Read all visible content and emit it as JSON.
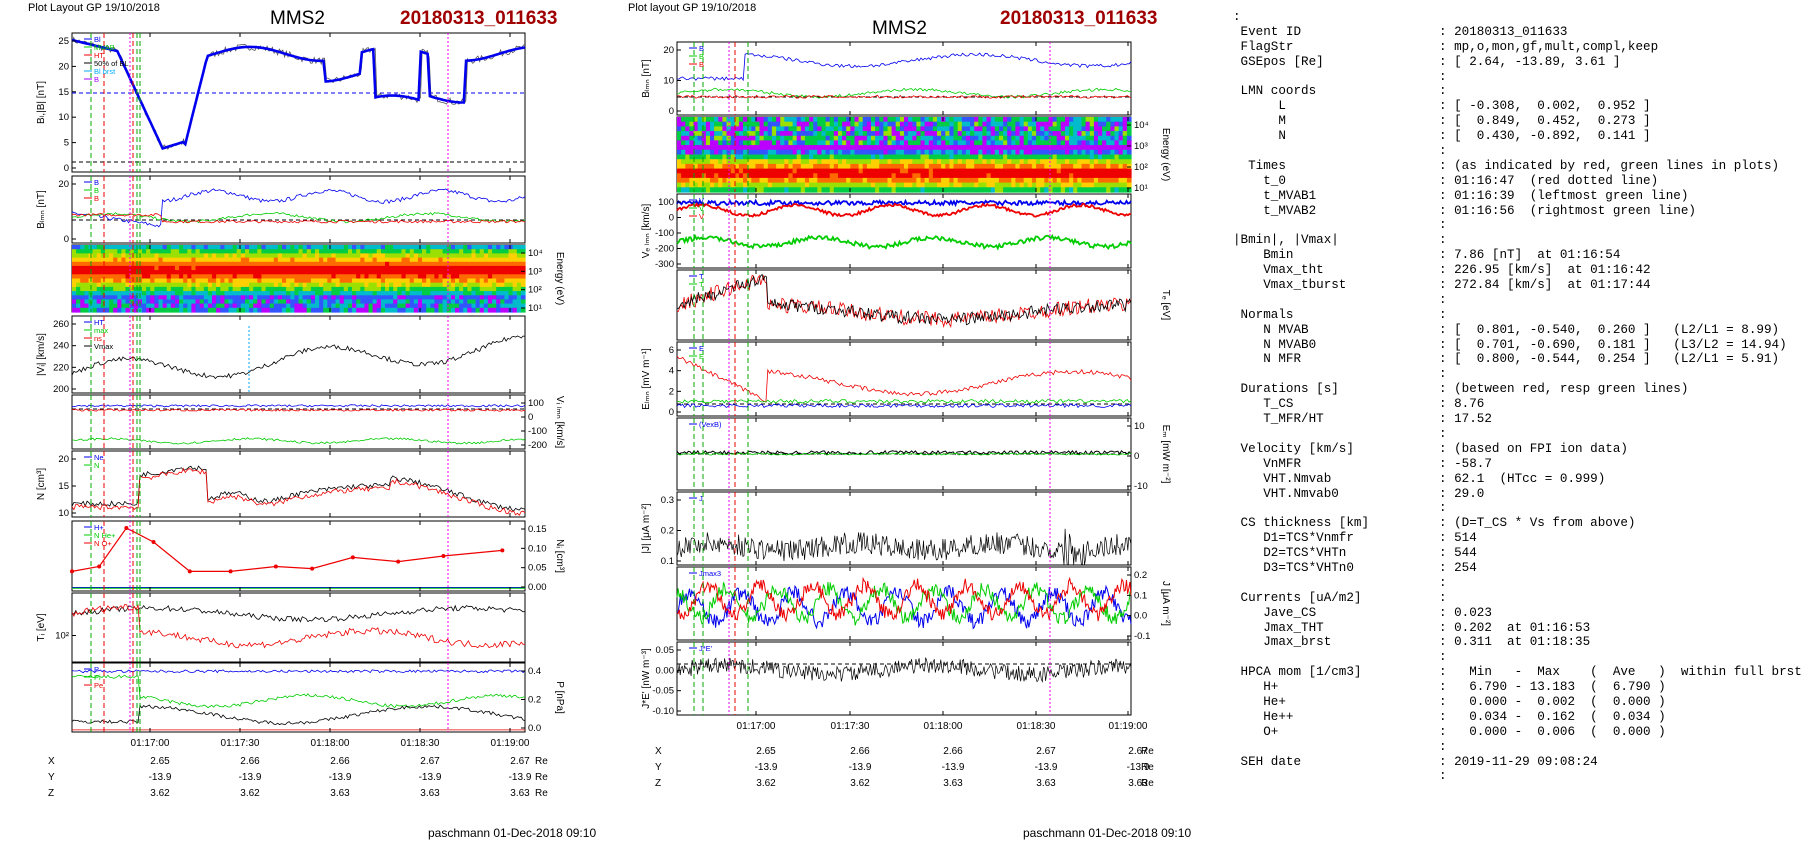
{
  "colors": {
    "title_id": "#a00000",
    "l": "#0000ee",
    "m": "#00cc00",
    "n": "#ee0000",
    "magenta": "#ee00ee",
    "green_line": "#00aa00",
    "red_line": "#ee0000"
  },
  "left_plot": {
    "header": "Plot Layout GP 19/10/2018",
    "title": "MMS2",
    "event_id": "20180313_011633",
    "footer": "paschmann 01-Dec-2018 09:10",
    "panels": [
      {
        "ylabel": "Bₗ,|B| [nT]",
        "ticks": [
          "25",
          "20",
          "15",
          "10",
          "5",
          "0"
        ],
        "legend": [
          "Bl",
          "MVAB",
          "HT",
          "50% of BL",
          "Bl brst",
          "B"
        ]
      },
      {
        "ylabel": "Bₗₘₙ [nT]",
        "ticks": [
          "20",
          "0"
        ],
        "legend": [
          "B",
          "B",
          "B"
        ]
      },
      {
        "ylabel": "Energy (eV)",
        "ticks": [
          "10⁴",
          "10³",
          "10²",
          "10¹"
        ]
      },
      {
        "ylabel": "|Vᵢ| [km/s]",
        "ticks": [
          "260",
          "240",
          "220",
          "200"
        ],
        "legend": [
          "HT",
          "max",
          "ns",
          "Vmax"
        ]
      },
      {
        "ylabel": "Vᵢ ₗₘₙ [km/s]",
        "ticks": [
          "100",
          "0",
          "-100",
          "-200"
        ]
      },
      {
        "ylabel": "N [cm³]",
        "ticks": [
          "20",
          "15",
          "10"
        ],
        "legend": [
          "Ne",
          "N"
        ]
      },
      {
        "ylabel": "Nᵢ [cm³]",
        "ticks": [
          "0.15",
          "0.10",
          "0.05",
          "0.00"
        ],
        "legend": [
          "H+",
          "N He+",
          "N O+"
        ]
      },
      {
        "ylabel": "Tᵢ [eV]",
        "ticks": [
          "10²"
        ]
      },
      {
        "ylabel": "P [nPa]",
        "ticks": [
          "0.4",
          "0.2",
          "0.0"
        ],
        "legend": [
          "P",
          "Pi",
          "Pe"
        ]
      }
    ],
    "time_ticks": [
      "01:17:00",
      "01:17:30",
      "01:18:00",
      "01:18:30",
      "01:19:00"
    ],
    "coords": [
      {
        "label": "X",
        "values": [
          "2.65",
          "2.66",
          "2.66",
          "2.67",
          "2.67"
        ],
        "unit": "Re"
      },
      {
        "label": "Y",
        "values": [
          "-13.9",
          "-13.9",
          "-13.9",
          "-13.9",
          "-13.9"
        ],
        "unit": "Re"
      },
      {
        "label": "Z",
        "values": [
          "3.62",
          "3.62",
          "3.63",
          "3.63",
          "3.63"
        ],
        "unit": "Re"
      }
    ]
  },
  "right_plot": {
    "header": "Plot layout GP 19/10/2018",
    "title": "MMS2",
    "event_id": "20180313_011633",
    "footer": "paschmann 01-Dec-2018 09:10",
    "panels": [
      {
        "ylabel": "Bₗₘₙ [nT]",
        "ticks": [
          "20",
          "10",
          "0"
        ],
        "legend": [
          "B",
          "B",
          "B"
        ]
      },
      {
        "ylabel": "Energy (eV)",
        "ticks": [
          "10⁴",
          "10³",
          "10²",
          "10¹"
        ]
      },
      {
        "ylabel": "Vₑ ₗₘₙ [km/s]",
        "ticks": [
          "100",
          "0",
          "-100",
          "-200",
          "-300"
        ],
        "legend": [
          "V",
          "V",
          "V"
        ]
      },
      {
        "ylabel": "Tₑ [eV]",
        "ticks": [],
        "legend": [
          "T",
          "T"
        ]
      },
      {
        "ylabel": "Eₗₘₙ [mV m⁻¹]",
        "ticks": [
          "6",
          "4",
          "2",
          "0"
        ],
        "legend": [
          "E",
          "E"
        ]
      },
      {
        "ylabel": "Eₘ [mW m⁻²]",
        "ticks": [
          "10",
          "0",
          "-10"
        ],
        "legend": [
          "(VexB)"
        ]
      },
      {
        "ylabel": "|J| [μA m⁻²]",
        "ticks": [
          "0.3",
          "0.2",
          "0.1"
        ],
        "legend": [
          "J"
        ]
      },
      {
        "ylabel": "J [μA m⁻²]",
        "ticks": [
          "0.2",
          "0.1",
          "0.0",
          "-0.1"
        ],
        "legend": [
          "Jmax3"
        ]
      },
      {
        "ylabel": "J*E' [nW m⁻³]",
        "ticks": [
          "0.05",
          "0.00",
          "-0.05",
          "-0.10"
        ],
        "legend": [
          "J*E'"
        ]
      }
    ],
    "time_ticks": [
      "01:17:00",
      "01:17:30",
      "01:18:00",
      "01:18:30",
      "01:19:00"
    ],
    "coords": [
      {
        "label": "X",
        "values": [
          "2.65",
          "2.66",
          "2.66",
          "2.67",
          "2.67"
        ],
        "unit": "Re"
      },
      {
        "label": "Y",
        "values": [
          "-13.9",
          "-13.9",
          "-13.9",
          "-13.9",
          "-13.9"
        ],
        "unit": "Re"
      },
      {
        "label": "Z",
        "values": [
          "3.62",
          "3.62",
          "3.63",
          "3.63",
          "3.63"
        ],
        "unit": "Re"
      }
    ]
  },
  "info_lines": [
    {
      "k": ":",
      "v": ""
    },
    {
      "k": " Event ID",
      "v": ": 20180313_011633"
    },
    {
      "k": " FlagStr",
      "v": ": mp,o,mon,gf,mult,compl,keep"
    },
    {
      "k": " GSEpos [Re]",
      "v": ": [ 2.64, -13.89, 3.61 ]"
    },
    {
      "k": "",
      "v": ":"
    },
    {
      "k": " LMN coords",
      "v": ":"
    },
    {
      "k": "      L",
      "v": ": [ -0.308,  0.002,  0.952 ]"
    },
    {
      "k": "      M",
      "v": ": [  0.849,  0.452,  0.273 ]"
    },
    {
      "k": "      N",
      "v": ": [  0.430, -0.892,  0.141 ]"
    },
    {
      "k": "",
      "v": ":"
    },
    {
      "k": "  Times",
      "v": ": (as indicated by red, green lines in plots)"
    },
    {
      "k": "    t_0",
      "v": ": 01:16:47  (red dotted line)"
    },
    {
      "k": "    t_MVAB1",
      "v": ": 01:16:39  (leftmost green line)"
    },
    {
      "k": "    t_MVAB2",
      "v": ": 01:16:56  (rightmost green line)"
    },
    {
      "k": "",
      "v": ":"
    },
    {
      "k": "|Bmin|, |Vmax|",
      "v": ":"
    },
    {
      "k": "    Bmin",
      "v": ": 7.86 [nT]  at 01:16:54"
    },
    {
      "k": "    Vmax_tht",
      "v": ": 226.95 [km/s]  at 01:16:42"
    },
    {
      "k": "    Vmax_tburst",
      "v": ": 272.84 [km/s]  at 01:17:44"
    },
    {
      "k": "",
      "v": ":"
    },
    {
      "k": " Normals",
      "v": ":"
    },
    {
      "k": "    N MVAB",
      "v": ": [  0.801, -0.540,  0.260 ]   (L2/L1 = 8.99)"
    },
    {
      "k": "    N MVAB0",
      "v": ": [  0.701, -0.690,  0.181 ]   (L3/L2 = 14.94)"
    },
    {
      "k": "    N MFR",
      "v": ": [  0.800, -0.544,  0.254 ]   (L2/L1 = 5.91)"
    },
    {
      "k": "",
      "v": ":"
    },
    {
      "k": " Durations [s]",
      "v": ": (between red, resp green lines)"
    },
    {
      "k": "    T_CS",
      "v": ": 8.76"
    },
    {
      "k": "    T_MFR/HT",
      "v": ": 17.52"
    },
    {
      "k": "",
      "v": ":"
    },
    {
      "k": " Velocity [km/s]",
      "v": ": (based on FPI ion data)"
    },
    {
      "k": "    VnMFR",
      "v": ": -58.7"
    },
    {
      "k": "    VHT.Nmvab",
      "v": ": 62.1  (HTcc = 0.999)"
    },
    {
      "k": "    VHT.Nmvab0",
      "v": ": 29.0"
    },
    {
      "k": "",
      "v": ":"
    },
    {
      "k": " CS thickness [km]",
      "v": ": (D=T_CS * Vs from above)"
    },
    {
      "k": "    D1=TCS*Vnmfr",
      "v": ": 514"
    },
    {
      "k": "    D2=TCS*VHTn",
      "v": ": 544"
    },
    {
      "k": "    D3=TCS*VHTn0",
      "v": ": 254"
    },
    {
      "k": "",
      "v": ":"
    },
    {
      "k": " Currents [uA/m2]",
      "v": ":"
    },
    {
      "k": "    Jave_CS",
      "v": ": 0.023"
    },
    {
      "k": "    Jmax_THT",
      "v": ": 0.202  at 01:16:53"
    },
    {
      "k": "    Jmax_brst",
      "v": ": 0.311  at 01:18:35"
    },
    {
      "k": "",
      "v": ":"
    },
    {
      "k": " HPCA mom [1/cm3]",
      "v": ":   Min   -  Max    (  Ave   )  within full brst int"
    },
    {
      "k": "    H+",
      "v": ":   6.790 - 13.183  (  6.790 )"
    },
    {
      "k": "    He+",
      "v": ":   0.000 -  0.002  (  0.000 )"
    },
    {
      "k": "    He++",
      "v": ":   0.034 -  0.162  (  0.034 )"
    },
    {
      "k": "    O+",
      "v": ":   0.000 -  0.006  (  0.000 )"
    },
    {
      "k": "",
      "v": ":"
    },
    {
      "k": " SEH date",
      "v": ": 2019-11-29 09:08:24"
    },
    {
      "k": "",
      "v": ":"
    }
  ]
}
